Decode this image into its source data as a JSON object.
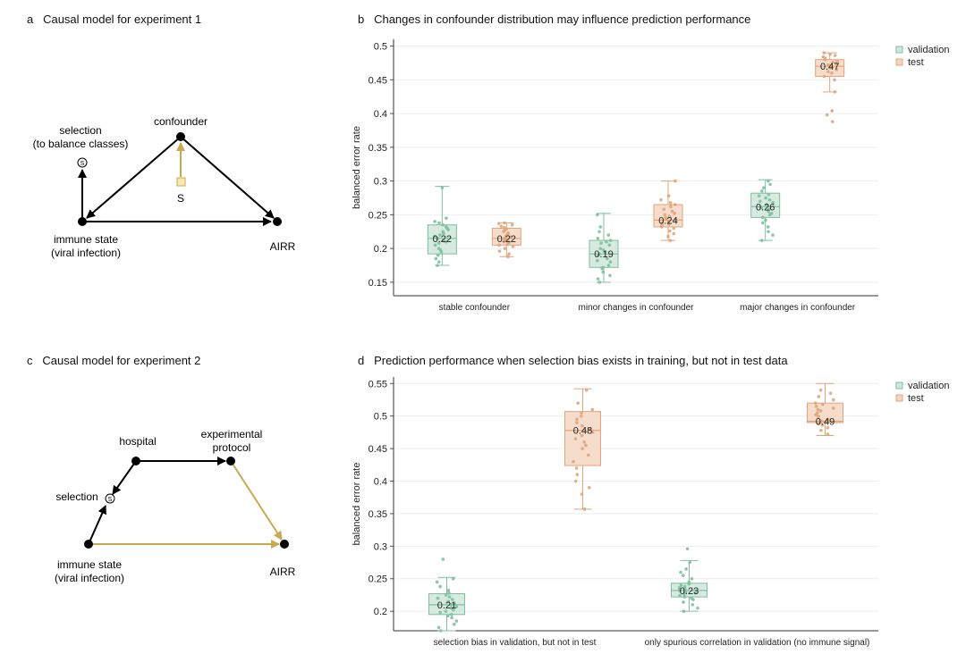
{
  "colors": {
    "validation": "#7fbf9f",
    "validation_fill": "#cfe6da",
    "test": "#e0a57c",
    "test_fill": "#f3d6c2",
    "selection_arrow": "#c9a94f",
    "node": "#000000"
  },
  "panels": {
    "a": {
      "letter": "a",
      "title": "Causal model for experiment 1"
    },
    "b": {
      "letter": "b",
      "title": "Changes in confounder distribution may influence prediction performance"
    },
    "c": {
      "letter": "c",
      "title": "Causal model for experiment 2"
    },
    "d": {
      "letter": "d",
      "title": "Prediction performance when selection bias exists in training, but not in test data"
    }
  },
  "diagram_a": {
    "nodes": {
      "confounder": "confounder",
      "selection_line1": "selection",
      "selection_line2": "(to balance classes)",
      "immune_line1": "immune state",
      "immune_line2": "(viral infection)",
      "airr": "AIRR",
      "s_square": "S"
    }
  },
  "diagram_c": {
    "nodes": {
      "hospital": "hospital",
      "protocol_line1": "experimental",
      "protocol_line2": "protocol",
      "selection": "selection",
      "immune_line1": "immune state",
      "immune_line2": "(viral infection)",
      "airr": "AIRR"
    }
  },
  "legend": {
    "validation": "validation",
    "test": "test"
  },
  "chart_data": [
    {
      "type": "box",
      "title": "Changes in confounder distribution may influence prediction performance",
      "ylabel": "balanced error rate",
      "ylim": [
        0.13,
        0.51
      ],
      "yticks": [
        0.15,
        0.2,
        0.25,
        0.3,
        0.35,
        0.4,
        0.45,
        0.5
      ],
      "ytick_labels": [
        "0.15",
        "0.2",
        "0.25",
        "0.3",
        "0.35",
        "0.4",
        "0.45",
        "0.5"
      ],
      "categories": [
        "stable confounder",
        "minor changes in confounder",
        "major changes in confounder"
      ],
      "legend": "top-right",
      "series": [
        {
          "name": "validation",
          "groups": [
            {
              "min": 0.175,
              "q1": 0.192,
              "median": 0.215,
              "q3": 0.235,
              "max": 0.292,
              "label": "0.22",
              "points": [
                0.175,
                0.18,
                0.185,
                0.19,
                0.195,
                0.198,
                0.2,
                0.205,
                0.208,
                0.21,
                0.212,
                0.215,
                0.218,
                0.22,
                0.222,
                0.225,
                0.228,
                0.23,
                0.232,
                0.235,
                0.238,
                0.24,
                0.245,
                0.29
              ]
            },
            {
              "min": 0.15,
              "q1": 0.172,
              "median": 0.192,
              "q3": 0.212,
              "max": 0.252,
              "label": "0.19",
              "points": [
                0.15,
                0.155,
                0.16,
                0.165,
                0.17,
                0.172,
                0.175,
                0.18,
                0.182,
                0.185,
                0.19,
                0.192,
                0.195,
                0.198,
                0.2,
                0.205,
                0.208,
                0.21,
                0.212,
                0.215,
                0.22,
                0.225,
                0.232,
                0.25
              ]
            },
            {
              "min": 0.212,
              "q1": 0.246,
              "median": 0.262,
              "q3": 0.282,
              "max": 0.302,
              "label": "0.26",
              "points": [
                0.212,
                0.22,
                0.225,
                0.232,
                0.238,
                0.242,
                0.246,
                0.25,
                0.252,
                0.255,
                0.258,
                0.26,
                0.262,
                0.265,
                0.268,
                0.27,
                0.272,
                0.275,
                0.278,
                0.28,
                0.285,
                0.29,
                0.295,
                0.3
              ]
            }
          ]
        },
        {
          "name": "test",
          "groups": [
            {
              "min": 0.188,
              "q1": 0.205,
              "median": 0.215,
              "q3": 0.23,
              "max": 0.238,
              "label": "0.22",
              "points": [
                0.188,
                0.192,
                0.196,
                0.2,
                0.203,
                0.205,
                0.207,
                0.209,
                0.21,
                0.212,
                0.214,
                0.215,
                0.217,
                0.219,
                0.221,
                0.223,
                0.225,
                0.227,
                0.229,
                0.231,
                0.233,
                0.235,
                0.237,
                0.238
              ]
            },
            {
              "min": 0.212,
              "q1": 0.232,
              "median": 0.242,
              "q3": 0.265,
              "max": 0.3,
              "label": "0.24",
              "points": [
                0.212,
                0.218,
                0.222,
                0.226,
                0.23,
                0.232,
                0.234,
                0.236,
                0.238,
                0.24,
                0.242,
                0.244,
                0.246,
                0.248,
                0.25,
                0.252,
                0.255,
                0.258,
                0.262,
                0.265,
                0.268,
                0.272,
                0.278,
                0.3
              ]
            },
            {
              "min": 0.432,
              "q1": 0.455,
              "median": 0.47,
              "q3": 0.48,
              "max": 0.49,
              "label": "0.47",
              "points": [
                0.388,
                0.398,
                0.404,
                0.432,
                0.45,
                0.455,
                0.46,
                0.462,
                0.465,
                0.468,
                0.47,
                0.472,
                0.474,
                0.476,
                0.478,
                0.48,
                0.482,
                0.484,
                0.486,
                0.488,
                0.49
              ]
            }
          ]
        }
      ]
    },
    {
      "type": "box",
      "title": "Prediction performance when selection bias exists in training, but not in test data",
      "ylabel": "balanced error rate",
      "ylim": [
        0.17,
        0.56
      ],
      "yticks": [
        0.2,
        0.25,
        0.3,
        0.35,
        0.4,
        0.45,
        0.5,
        0.55
      ],
      "ytick_labels": [
        "0.2",
        "0.25",
        "0.3",
        "0.35",
        "0.4",
        "0.45",
        "0.5",
        "0.55"
      ],
      "categories": [
        "selection bias in validation, but not in test",
        "only spurious correlation in validation (no immune signal)"
      ],
      "legend": "top-right",
      "series": [
        {
          "name": "validation",
          "groups": [
            {
              "min": 0.17,
              "q1": 0.195,
              "median": 0.21,
              "q3": 0.227,
              "max": 0.252,
              "label": "0.21",
              "points": [
                0.17,
                0.175,
                0.18,
                0.185,
                0.19,
                0.193,
                0.195,
                0.198,
                0.2,
                0.202,
                0.205,
                0.207,
                0.21,
                0.212,
                0.215,
                0.218,
                0.22,
                0.222,
                0.225,
                0.228,
                0.232,
                0.238,
                0.245,
                0.25,
                0.28
              ]
            },
            {
              "min": 0.2,
              "q1": 0.222,
              "median": 0.232,
              "q3": 0.243,
              "max": 0.278,
              "label": "0.23",
              "points": [
                0.2,
                0.205,
                0.21,
                0.214,
                0.218,
                0.22,
                0.222,
                0.224,
                0.226,
                0.228,
                0.23,
                0.232,
                0.234,
                0.236,
                0.238,
                0.24,
                0.242,
                0.245,
                0.25,
                0.255,
                0.26,
                0.265,
                0.275,
                0.296
              ]
            }
          ]
        },
        {
          "name": "test",
          "groups": [
            {
              "min": 0.357,
              "q1": 0.424,
              "median": 0.478,
              "q3": 0.507,
              "max": 0.542,
              "label": "0.48",
              "points": [
                0.357,
                0.38,
                0.39,
                0.4,
                0.41,
                0.42,
                0.43,
                0.44,
                0.45,
                0.455,
                0.46,
                0.465,
                0.47,
                0.475,
                0.478,
                0.48,
                0.485,
                0.49,
                0.495,
                0.5,
                0.505,
                0.51,
                0.52,
                0.54
              ]
            },
            {
              "min": 0.47,
              "q1": 0.49,
              "median": 0.492,
              "q3": 0.52,
              "max": 0.55,
              "label": "0.49",
              "points": [
                0.472,
                0.478,
                0.482,
                0.486,
                0.488,
                0.49,
                0.491,
                0.492,
                0.493,
                0.495,
                0.498,
                0.5,
                0.502,
                0.505,
                0.508,
                0.51,
                0.512,
                0.515,
                0.518,
                0.52,
                0.525,
                0.53,
                0.535,
                0.54
              ]
            }
          ]
        }
      ]
    }
  ]
}
